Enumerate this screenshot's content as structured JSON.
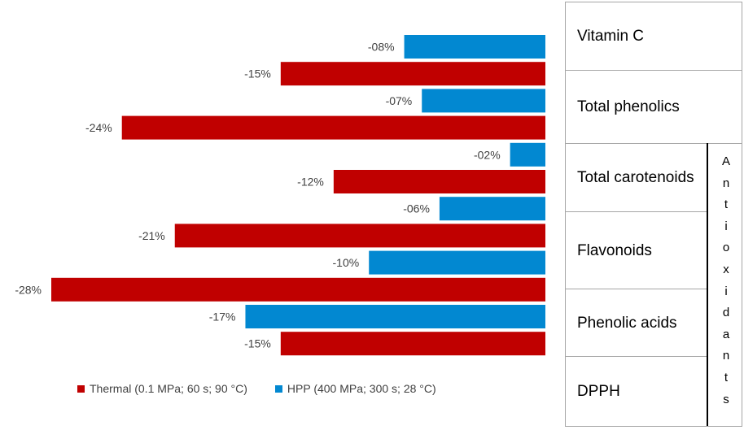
{
  "chart_data": {
    "type": "bar",
    "orientation": "horizontal",
    "categories": [
      "Vitamin C",
      "Total phenolics",
      "Total carotenoids",
      "Flavonoids",
      "Phenolic acids",
      "DPPH"
    ],
    "series": [
      {
        "name": "HPP (400 MPa; 300 s; 28 °C)",
        "color": "#0288d1",
        "values": [
          -8,
          -7,
          -2,
          -6,
          -10,
          -17
        ]
      },
      {
        "name": "Thermal (0.1 MPa; 60 s; 90 °C)",
        "color": "#c00000",
        "values": [
          -15,
          -24,
          -12,
          -21,
          -28,
          -15
        ]
      }
    ],
    "bars": [
      {
        "series": "HPP",
        "category": "Vitamin C",
        "value": -8,
        "label": "-08%"
      },
      {
        "series": "Thermal",
        "category": "Vitamin C",
        "value": -15,
        "label": "-15%"
      },
      {
        "series": "HPP",
        "category": "Total phenolics",
        "value": -7,
        "label": "-07%"
      },
      {
        "series": "Thermal",
        "category": "Total phenolics",
        "value": -24,
        "label": "-24%"
      },
      {
        "series": "HPP",
        "category": "Total carotenoids",
        "value": -2,
        "label": "-02%"
      },
      {
        "series": "Thermal",
        "category": "Total carotenoids",
        "value": -12,
        "label": "-12%"
      },
      {
        "series": "HPP",
        "category": "Flavonoids",
        "value": -6,
        "label": "-06%"
      },
      {
        "series": "Thermal",
        "category": "Flavonoids",
        "value": -21,
        "label": "-21%"
      },
      {
        "series": "HPP",
        "category": "Phenolic acids",
        "value": -10,
        "label": "-10%"
      },
      {
        "series": "Thermal",
        "category": "Phenolic acids",
        "value": -28,
        "label": "-28%"
      },
      {
        "series": "HPP",
        "category": "DPPH",
        "value": -17,
        "label": "-17%"
      },
      {
        "series": "Thermal",
        "category": "DPPH",
        "value": -15,
        "label": "-15%"
      }
    ],
    "xlim": [
      -28,
      0
    ],
    "legend_position": "bottom"
  },
  "legend": {
    "thermal": "Thermal (0.1 MPa; 60 s; 90 °C)",
    "hpp": "HPP (400 MPa; 300 s; 28 °C)"
  },
  "table": {
    "rows": [
      "Vitamin C",
      "Total phenolics",
      "Total carotenoids",
      "Flavonoids",
      "Phenolic acids",
      "DPPH"
    ],
    "group_label_letters": [
      "A",
      "n",
      "t",
      "i",
      "o",
      "x",
      "i",
      "d",
      "a",
      "n",
      "t",
      "s"
    ]
  },
  "colors": {
    "thermal": "#c00000",
    "hpp": "#0288d1"
  }
}
